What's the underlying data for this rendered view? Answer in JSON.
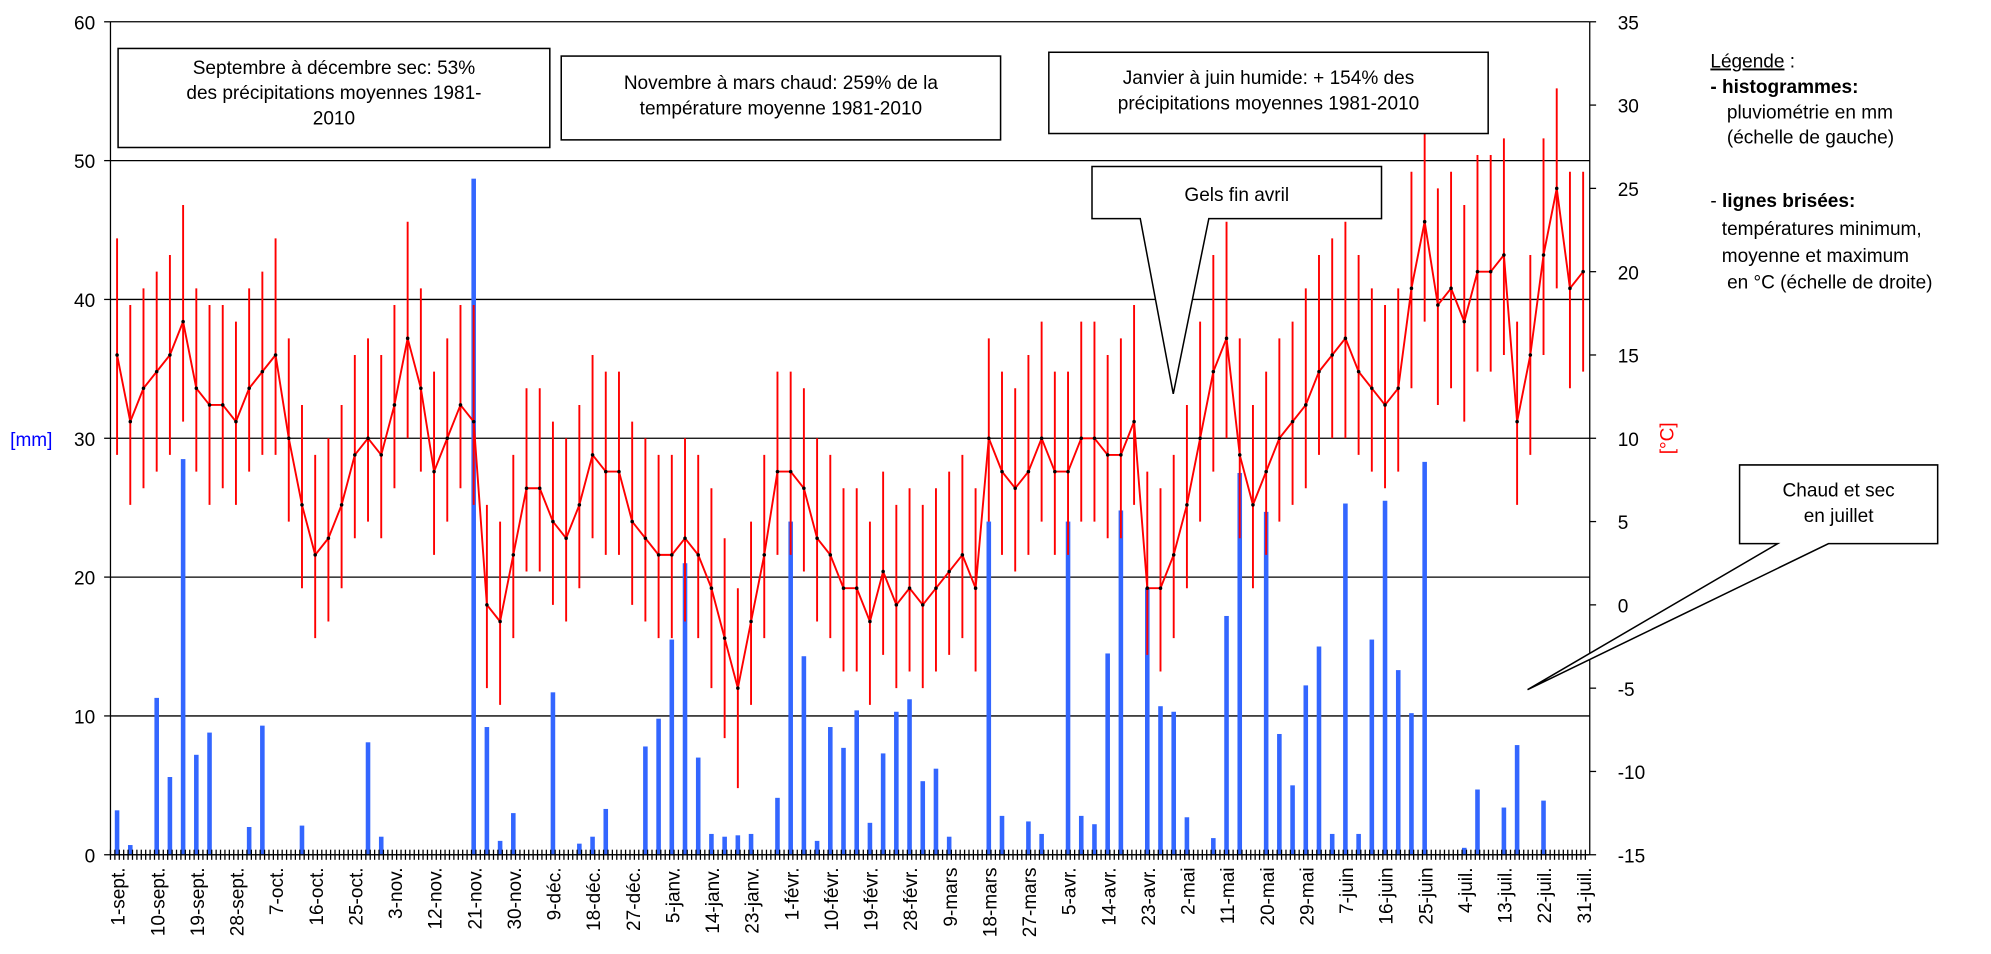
{
  "chart_data": {
    "type": "combo",
    "categories": [
      "1-sept.",
      null,
      null,
      "10-sept.",
      null,
      null,
      "19-sept.",
      null,
      null,
      "28-sept.",
      null,
      null,
      "7-oct.",
      null,
      null,
      "16-oct.",
      null,
      null,
      "25-oct.",
      null,
      null,
      "3-nov.",
      null,
      null,
      "12-nov.",
      null,
      null,
      "21-nov.",
      null,
      null,
      "30-nov.",
      null,
      null,
      "9-déc.",
      null,
      null,
      "18-déc.",
      null,
      null,
      "27-déc.",
      null,
      null,
      "5-janv.",
      null,
      null,
      "14-janv.",
      null,
      null,
      "23-janv.",
      null,
      null,
      "1-févr.",
      null,
      null,
      "10-févr.",
      null,
      null,
      "19-févr.",
      null,
      null,
      "28-févr.",
      null,
      null,
      "9-mars",
      null,
      null,
      "18-mars",
      null,
      null,
      "27-mars",
      null,
      null,
      "5-avr.",
      null,
      null,
      "14-avr.",
      null,
      null,
      "23-avr.",
      null,
      null,
      "2-mai",
      null,
      null,
      "11-mai",
      null,
      null,
      "20-mai",
      null,
      null,
      "29-mai",
      null,
      null,
      "7-juin",
      null,
      null,
      "16-juin",
      null,
      null,
      "25-juin",
      null,
      null,
      "4-juil.",
      null,
      null,
      "13-juil.",
      null,
      null,
      "22-juil.",
      null,
      null,
      "31-juil."
    ],
    "series": [
      {
        "type": "bar",
        "color": "#3366ff",
        "values": [
          3.2,
          0.7,
          0,
          11.3,
          5.6,
          28.5,
          7.2,
          8.8,
          0,
          0,
          2,
          9.3,
          0,
          0,
          2.1,
          0,
          0,
          0,
          0,
          8.1,
          1.3,
          0,
          0,
          0,
          0,
          0,
          0,
          48.7,
          9.2,
          1,
          3,
          0,
          0,
          11.7,
          0,
          0.8,
          1.3,
          3.3,
          0,
          0,
          7.8,
          9.8,
          15.5,
          21,
          7,
          1.5,
          1.3,
          1.4,
          1.5,
          0,
          4.1,
          24,
          14.3,
          1,
          9.2,
          7.7,
          10.4,
          2.3,
          7.3,
          10.3,
          11.2,
          5.3,
          6.2,
          1.3,
          0,
          0,
          24,
          2.8,
          0,
          2.4,
          1.5,
          0,
          24,
          2.8,
          2.2,
          14.5,
          24.8,
          0,
          19.2,
          10.7,
          10.3,
          2.7,
          0,
          1.2,
          17.2,
          27.5,
          0,
          24.7,
          8.7,
          5,
          12.2,
          15,
          1.5,
          25.3,
          1.5,
          15.5,
          25.5,
          13.3,
          10.2,
          28.3,
          0,
          0,
          0.5,
          4.7,
          0,
          3.4,
          7.9,
          0,
          3.9,
          0,
          0,
          0
        ]
      },
      {
        "type": "line",
        "axis": "y2",
        "color": "#ff0000",
        "values": [
          15,
          11,
          13,
          14,
          15,
          17,
          13,
          12,
          12,
          11,
          13,
          14,
          15,
          10,
          6,
          3,
          4,
          6,
          9,
          10,
          9,
          12,
          16,
          13,
          8,
          10,
          12,
          11,
          0,
          -1,
          3,
          7,
          7,
          5,
          4,
          6,
          9,
          8,
          8,
          5,
          4,
          3,
          3,
          4,
          3,
          1,
          -2,
          -5,
          -1,
          3,
          8,
          8,
          7,
          4,
          3,
          1,
          1,
          -1,
          2,
          0,
          1,
          0,
          1,
          2,
          3,
          1,
          10,
          8,
          7,
          8,
          10,
          8,
          8,
          10,
          10,
          9,
          9,
          11,
          1,
          1,
          3,
          6,
          10,
          14,
          16,
          9,
          6,
          8,
          10,
          11,
          12,
          14,
          15,
          16,
          14,
          13,
          12,
          13,
          19,
          23,
          18,
          19,
          17,
          20,
          20,
          21,
          11,
          15,
          21,
          25,
          19,
          20
        ]
      },
      {
        "type": "range",
        "axis": "y2",
        "color": "#ff0000",
        "low": [
          9,
          6,
          7,
          8,
          9,
          11,
          8,
          6,
          7,
          6,
          8,
          9,
          9,
          5,
          1,
          -2,
          -1,
          1,
          4,
          5,
          4,
          7,
          10,
          8,
          3,
          5,
          7,
          6,
          -5,
          -6,
          -2,
          2,
          2,
          0,
          -1,
          1,
          4,
          3,
          3,
          0,
          -1,
          -2,
          -2,
          -1,
          -2,
          -5,
          -8,
          -11,
          -6,
          -2,
          3,
          3,
          2,
          -1,
          -2,
          -4,
          -4,
          -6,
          -3,
          -5,
          -4,
          -5,
          -4,
          -3,
          -2,
          -4,
          5,
          3,
          2,
          3,
          5,
          3,
          3,
          5,
          5,
          4,
          4,
          6,
          -3,
          -4,
          -2,
          1,
          5,
          8,
          10,
          4,
          1,
          3,
          5,
          6,
          7,
          9,
          10,
          10,
          9,
          8,
          7,
          8,
          13,
          17,
          12,
          13,
          11,
          14,
          14,
          15,
          6,
          9,
          15,
          19,
          13,
          14
        ],
        "high": [
          22,
          18,
          19,
          20,
          21,
          24,
          19,
          18,
          18,
          17,
          19,
          20,
          22,
          16,
          12,
          9,
          10,
          12,
          15,
          16,
          15,
          18,
          23,
          19,
          14,
          16,
          18,
          18,
          6,
          5,
          9,
          13,
          13,
          11,
          10,
          12,
          15,
          14,
          14,
          11,
          10,
          9,
          9,
          10,
          9,
          7,
          4,
          1,
          5,
          9,
          14,
          14,
          13,
          10,
          9,
          7,
          7,
          5,
          8,
          6,
          7,
          6,
          7,
          8,
          9,
          7,
          16,
          14,
          13,
          15,
          17,
          14,
          14,
          17,
          17,
          15,
          16,
          18,
          8,
          7,
          9,
          12,
          17,
          21,
          23,
          16,
          12,
          14,
          16,
          17,
          19,
          21,
          22,
          23,
          21,
          19,
          18,
          19,
          26,
          29,
          25,
          26,
          24,
          27,
          27,
          28,
          17,
          21,
          28,
          31,
          26,
          26
        ]
      }
    ],
    "ylim": [
      0,
      60
    ],
    "yticks": [
      0,
      10,
      20,
      30,
      40,
      50,
      60
    ],
    "y2lim": [
      -15,
      35
    ],
    "y2ticks": [
      -15,
      -10,
      -5,
      0,
      5,
      10,
      15,
      20,
      25,
      30,
      35
    ],
    "ylabel": "[mm]",
    "y2label": "[°C]",
    "grid": true,
    "annotations": [
      {
        "lines": [
          "Septembre à décembre sec: 53%",
          "des précipitations moyennes 1981-",
          "2010"
        ]
      },
      {
        "lines": [
          "Novembre à mars chaud: 259% de la",
          "température moyenne 1981-2010"
        ]
      },
      {
        "lines": [
          "Janvier à juin humide: + 154% des",
          "précipitations moyennes 1981-2010"
        ]
      },
      {
        "lines": [
          "Gels fin avril"
        ]
      },
      {
        "lines": [
          "Chaud et sec",
          "en juillet"
        ]
      }
    ],
    "legend_text": {
      "title": "Légende",
      "title_suffix": " :",
      "item1": "- histogrammes:",
      "item1_lines": [
        "pluviométrie en mm",
        "(échelle de gauche)"
      ],
      "item2_dash": "- ",
      "item2": "lignes brisées:",
      "item2_lines": [
        "températures minimum,",
        "moyenne et maximum",
        " en °C (échelle de droite)"
      ]
    }
  }
}
